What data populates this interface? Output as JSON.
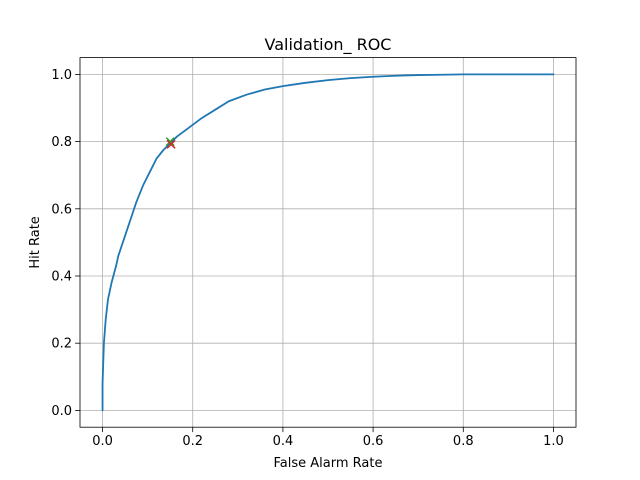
{
  "chart_data": {
    "type": "line",
    "title": "Validation_ ROC",
    "xlabel": "False Alarm Rate",
    "ylabel": "Hit Rate",
    "xlim": [
      -0.05,
      1.05
    ],
    "ylim": [
      -0.05,
      1.05
    ],
    "grid": true,
    "x_ticks": [
      0.0,
      0.2,
      0.4,
      0.6,
      0.8,
      1.0
    ],
    "y_ticks": [
      0.0,
      0.2,
      0.4,
      0.6,
      0.8,
      1.0
    ],
    "x_tick_labels": [
      "0.0",
      "0.2",
      "0.4",
      "0.6",
      "0.8",
      "1.0"
    ],
    "y_tick_labels": [
      "0.0",
      "0.2",
      "0.4",
      "0.6",
      "0.8",
      "1.0"
    ],
    "series": [
      {
        "color": "#1f77b4",
        "x": [
          0.0,
          0.0,
          0.003,
          0.007,
          0.012,
          0.02,
          0.03,
          0.035,
          0.045,
          0.06,
          0.075,
          0.09,
          0.105,
          0.12,
          0.135,
          0.15,
          0.165,
          0.19,
          0.22,
          0.25,
          0.28,
          0.32,
          0.36,
          0.4,
          0.45,
          0.5,
          0.55,
          0.6,
          0.65,
          0.7,
          0.75,
          0.8,
          0.9,
          1.0
        ],
        "y": [
          0.0,
          0.08,
          0.2,
          0.27,
          0.33,
          0.38,
          0.43,
          0.46,
          0.5,
          0.56,
          0.62,
          0.67,
          0.71,
          0.75,
          0.775,
          0.795,
          0.815,
          0.84,
          0.87,
          0.895,
          0.92,
          0.94,
          0.955,
          0.965,
          0.975,
          0.983,
          0.989,
          0.993,
          0.996,
          0.998,
          0.999,
          1.0,
          1.0,
          1.0
        ]
      }
    ],
    "markers": [
      {
        "x": 0.15,
        "y": 0.8,
        "color": "#2ca02c",
        "symbol": "x"
      },
      {
        "x": 0.152,
        "y": 0.792,
        "color": "#d62728",
        "symbol": "x"
      }
    ]
  }
}
